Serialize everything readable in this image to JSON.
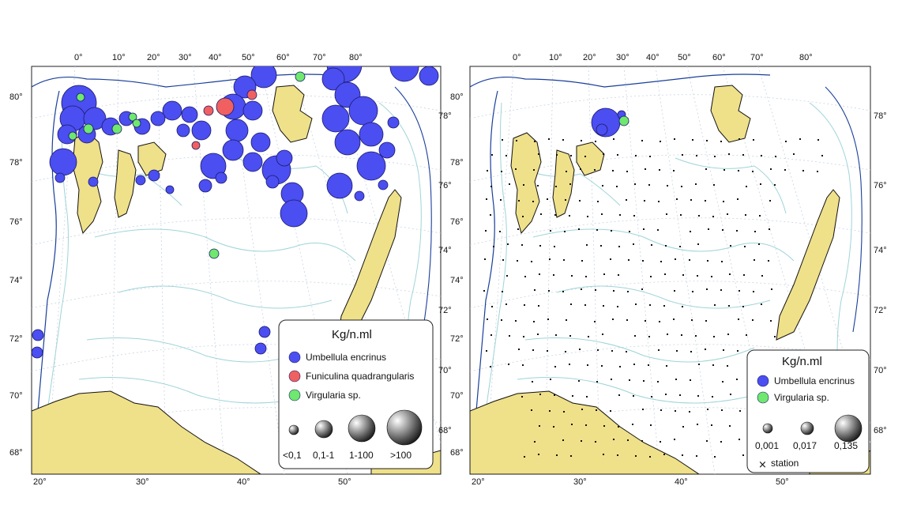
{
  "colors": {
    "umbellula": "#4b4ef0",
    "funiculina": "#f06060",
    "virgularia": "#6ee86e",
    "land": "#efe08a",
    "depth_main": "#1a3f9a",
    "depth_light": "#9fd4d8",
    "grid": "#c8d4e0"
  },
  "left_map": {
    "top_lon_labels": [
      "0°",
      "10°",
      "20°",
      "30°",
      "40°",
      "50°",
      "60°",
      "70°",
      "80°"
    ],
    "bottom_lon_labels": [
      "20°",
      "30°",
      "40°",
      "50°"
    ],
    "left_lat_labels": [
      "80°",
      "78°",
      "76°",
      "74°",
      "72°",
      "70°",
      "68°"
    ],
    "right_lat_labels": [
      "78°",
      "76°",
      "74°",
      "72°",
      "70°",
      "68°"
    ],
    "legend": {
      "title": "Kg/n.ml",
      "species": [
        {
          "icon": "blue-circle",
          "label": "Umbellula encrinus"
        },
        {
          "icon": "red-circle",
          "label": "Funiculina quadrangularis"
        },
        {
          "icon": "green-circle",
          "label": "Virgularia sp."
        }
      ],
      "size_classes": [
        "<0,1",
        "0,1-1",
        "1-100",
        ">100"
      ]
    }
  },
  "right_map": {
    "top_lon_labels": [
      "0°",
      "10°",
      "20°",
      "30°",
      "40°",
      "50°",
      "60°",
      "70°",
      "80°"
    ],
    "bottom_lon_labels": [
      "20°",
      "30°",
      "40°",
      "50°"
    ],
    "left_lat_labels": [
      "80°",
      "78°",
      "76°",
      "74°",
      "72°",
      "70°",
      "68°"
    ],
    "right_lat_labels": [
      "78°",
      "76°",
      "74°",
      "72°",
      "70°",
      "68°"
    ],
    "legend": {
      "title": "Kg/n.ml",
      "species": [
        {
          "icon": "blue-circle",
          "label": "Umbellula encrinus"
        },
        {
          "icon": "green-circle",
          "label": "Virgularia sp."
        }
      ],
      "size_classes": [
        "0,001",
        "0,017",
        "0,135"
      ],
      "station_label": "station"
    }
  }
}
